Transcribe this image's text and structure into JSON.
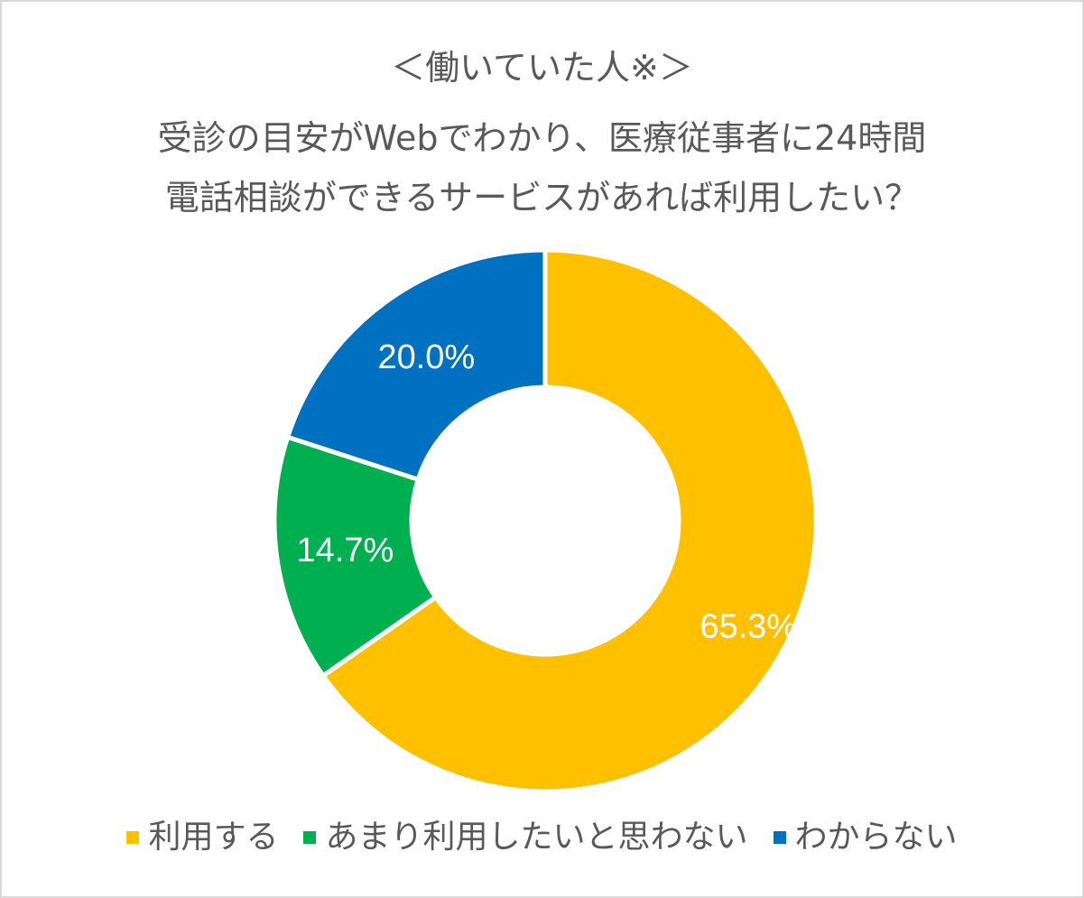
{
  "title_lines": [
    "＜働いていた人※＞",
    "受診の目安がWebでわかり、医療従事者に24時間",
    "電話相談ができるサービスがあれば利用したい？"
  ],
  "chart_data": {
    "type": "pie",
    "donut": true,
    "categories": [
      "利用する",
      "あまり利用したいと思わない",
      "わからない"
    ],
    "values": [
      65.3,
      14.7,
      20.0
    ],
    "labels": [
      "65.3%",
      "14.7%",
      "20.0%"
    ],
    "colors": [
      "#FFC000",
      "#00B050",
      "#0070C0"
    ],
    "legend": "bottom"
  }
}
